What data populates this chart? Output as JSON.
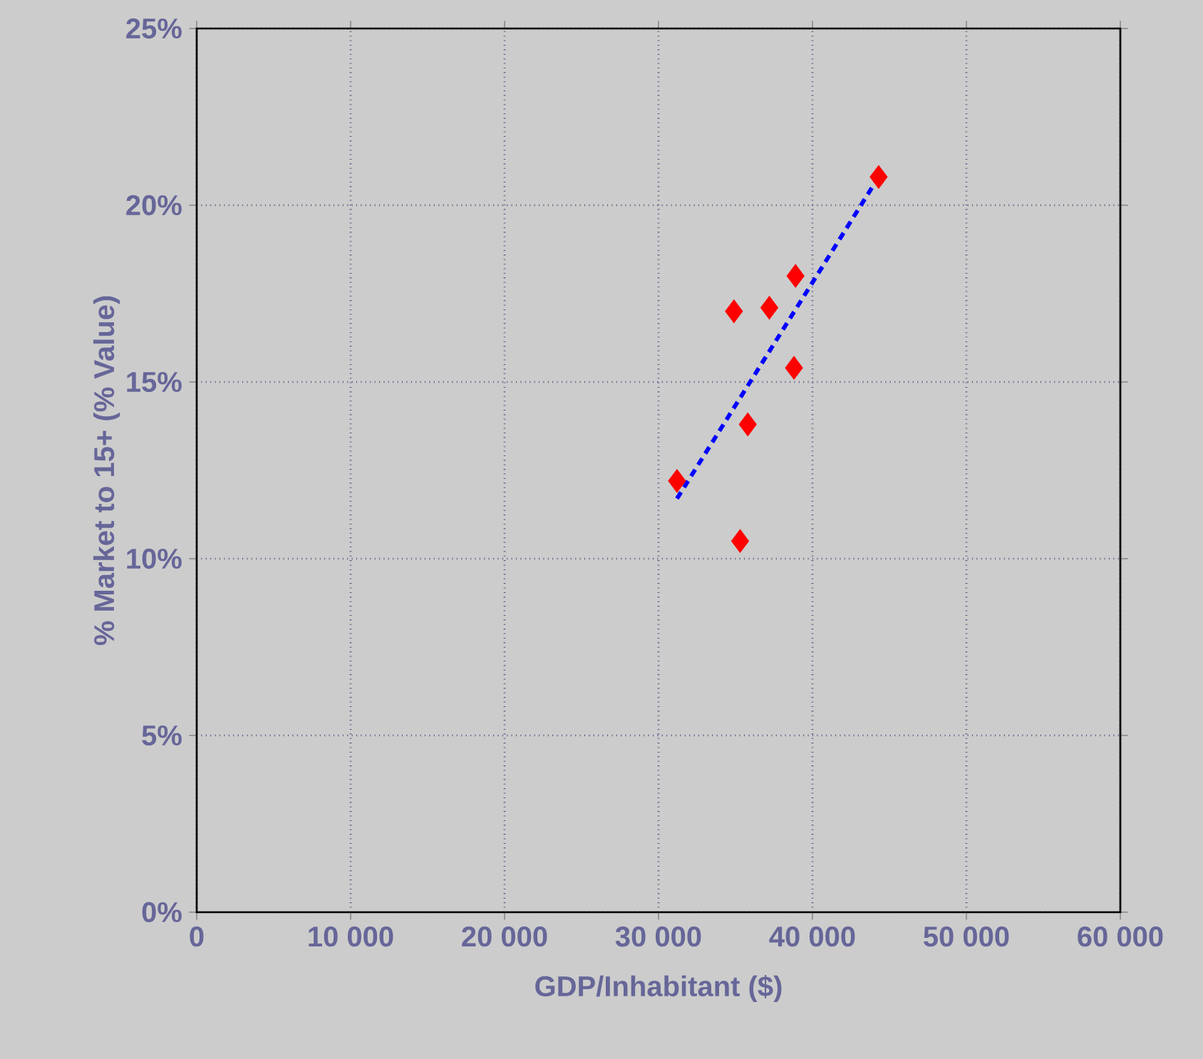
{
  "chart_data": {
    "type": "scatter",
    "xlabel": "GDP/Inhabitant ($)",
    "ylabel": "% Market to 15+ (% Value)",
    "xlim": [
      0,
      60000
    ],
    "ylim": [
      0,
      25
    ],
    "xticks": [
      {
        "value": 0,
        "label": "0"
      },
      {
        "value": 10000,
        "label": "10 000"
      },
      {
        "value": 20000,
        "label": "20 000"
      },
      {
        "value": 30000,
        "label": "30 000"
      },
      {
        "value": 40000,
        "label": "40 000"
      },
      {
        "value": 50000,
        "label": "50 000"
      },
      {
        "value": 60000,
        "label": "60 000"
      }
    ],
    "yticks": [
      {
        "value": 0,
        "label": "0%"
      },
      {
        "value": 5,
        "label": "5%"
      },
      {
        "value": 10,
        "label": "10%"
      },
      {
        "value": 15,
        "label": "15%"
      },
      {
        "value": 20,
        "label": "20%"
      },
      {
        "value": 25,
        "label": "25%"
      }
    ],
    "grid": true,
    "series": [
      {
        "color": "#ff0000",
        "marker": "diamond",
        "x": [
          31200,
          34900,
          37200,
          38900,
          38800,
          35800,
          35300,
          44300
        ],
        "values": [
          12.2,
          17.0,
          17.1,
          18.0,
          15.4,
          13.8,
          10.5,
          20.8
        ]
      },
      {
        "type": "line",
        "color": "#0000ff",
        "line_style": "dashed",
        "marker": "none",
        "x": [
          31200,
          44300
        ],
        "values": [
          11.7,
          20.8
        ]
      }
    ]
  }
}
